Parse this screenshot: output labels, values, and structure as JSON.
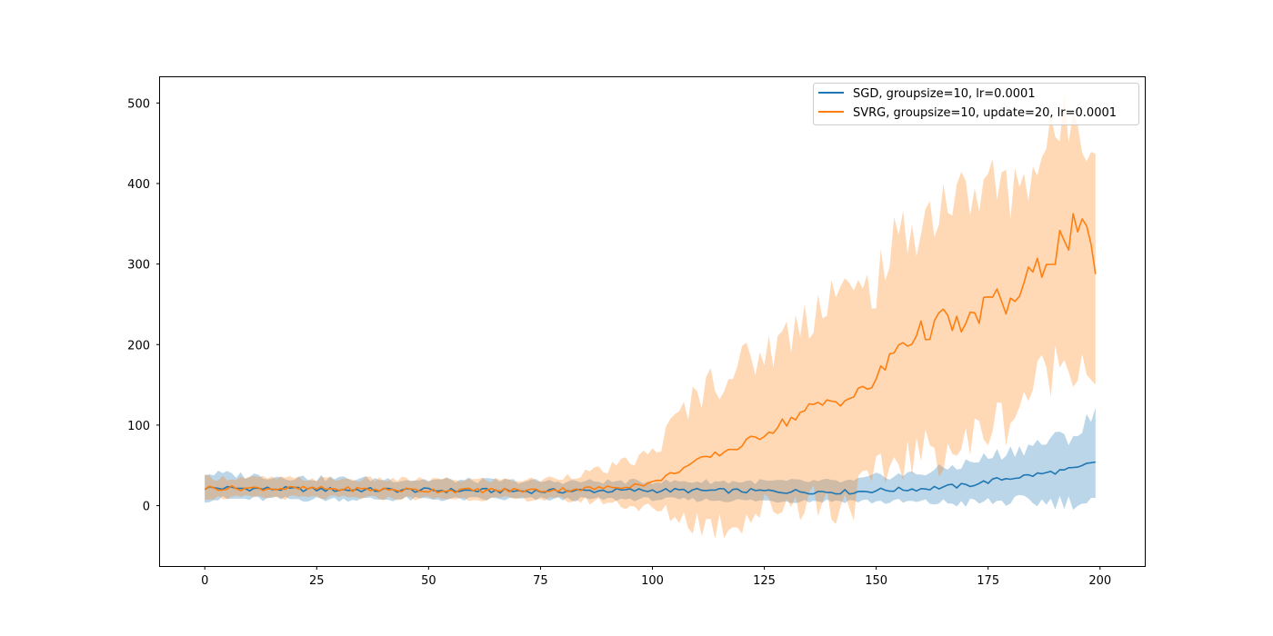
{
  "chart_data": {
    "type": "line",
    "title": "",
    "xlabel": "",
    "ylabel": "",
    "xlim": [
      -10,
      210
    ],
    "ylim": [
      -75,
      532
    ],
    "xticks": [
      0,
      25,
      50,
      75,
      100,
      125,
      150,
      175,
      200
    ],
    "yticks": [
      0,
      100,
      200,
      300,
      400,
      500
    ],
    "grid": false,
    "legend_position": "top-right",
    "series": [
      {
        "name": "SGD, groupsize=10, lr=0.0001",
        "color": "#1f77b4",
        "band_color": "#1f77b4",
        "keypoints": [
          {
            "x": 0,
            "mean": 22,
            "lower": 8,
            "upper": 40
          },
          {
            "x": 25,
            "mean": 20,
            "lower": 8,
            "upper": 34
          },
          {
            "x": 50,
            "mean": 19,
            "lower": 8,
            "upper": 32
          },
          {
            "x": 75,
            "mean": 18,
            "lower": 8,
            "upper": 30
          },
          {
            "x": 100,
            "mean": 19,
            "lower": 8,
            "upper": 30
          },
          {
            "x": 125,
            "mean": 18,
            "lower": 6,
            "upper": 30
          },
          {
            "x": 145,
            "mean": 17,
            "lower": 6,
            "upper": 30
          },
          {
            "x": 150,
            "mean": 19,
            "lower": 5,
            "upper": 36
          },
          {
            "x": 160,
            "mean": 21,
            "lower": 4,
            "upper": 40
          },
          {
            "x": 170,
            "mean": 25,
            "lower": 3,
            "upper": 52
          },
          {
            "x": 178,
            "mean": 33,
            "lower": 5,
            "upper": 65
          },
          {
            "x": 185,
            "mean": 38,
            "lower": 5,
            "upper": 75
          },
          {
            "x": 190,
            "mean": 42,
            "lower": 5,
            "upper": 82
          },
          {
            "x": 195,
            "mean": 46,
            "lower": 5,
            "upper": 90
          },
          {
            "x": 199,
            "mean": 55,
            "lower": 0,
            "upper": 113
          }
        ]
      },
      {
        "name": "SVRG, groupsize=10, update=20, lr=0.0001",
        "color": "#ff7f0e",
        "band_color": "#ff7f0e",
        "keypoints": [
          {
            "x": 0,
            "mean": 22,
            "lower": 10,
            "upper": 35
          },
          {
            "x": 25,
            "mean": 21,
            "lower": 10,
            "upper": 33
          },
          {
            "x": 50,
            "mean": 19,
            "lower": 9,
            "upper": 32
          },
          {
            "x": 75,
            "mean": 19,
            "lower": 8,
            "upper": 32
          },
          {
            "x": 90,
            "mean": 22,
            "lower": 5,
            "upper": 45
          },
          {
            "x": 100,
            "mean": 28,
            "lower": -5,
            "upper": 65
          },
          {
            "x": 110,
            "mean": 55,
            "lower": -20,
            "upper": 140
          },
          {
            "x": 115,
            "mean": 65,
            "lower": -25,
            "upper": 160
          },
          {
            "x": 120,
            "mean": 75,
            "lower": -15,
            "upper": 175
          },
          {
            "x": 125,
            "mean": 90,
            "lower": -5,
            "upper": 190
          },
          {
            "x": 130,
            "mean": 105,
            "lower": 5,
            "upper": 210
          },
          {
            "x": 135,
            "mean": 120,
            "lower": 10,
            "upper": 240
          },
          {
            "x": 140,
            "mean": 130,
            "lower": 0,
            "upper": 270
          },
          {
            "x": 145,
            "mean": 135,
            "lower": 10,
            "upper": 255
          },
          {
            "x": 150,
            "mean": 155,
            "lower": 30,
            "upper": 280
          },
          {
            "x": 155,
            "mean": 200,
            "lower": 60,
            "upper": 330
          },
          {
            "x": 160,
            "mean": 215,
            "lower": 60,
            "upper": 350
          },
          {
            "x": 165,
            "mean": 230,
            "lower": 75,
            "upper": 380
          },
          {
            "x": 170,
            "mean": 220,
            "lower": 70,
            "upper": 380
          },
          {
            "x": 175,
            "mean": 255,
            "lower": 100,
            "upper": 400
          },
          {
            "x": 180,
            "mean": 250,
            "lower": 110,
            "upper": 390
          },
          {
            "x": 185,
            "mean": 285,
            "lower": 150,
            "upper": 420
          },
          {
            "x": 190,
            "mean": 320,
            "lower": 175,
            "upper": 460
          },
          {
            "x": 195,
            "mean": 345,
            "lower": 185,
            "upper": 490
          },
          {
            "x": 199,
            "mean": 305,
            "lower": 168,
            "upper": 445
          }
        ]
      }
    ]
  }
}
